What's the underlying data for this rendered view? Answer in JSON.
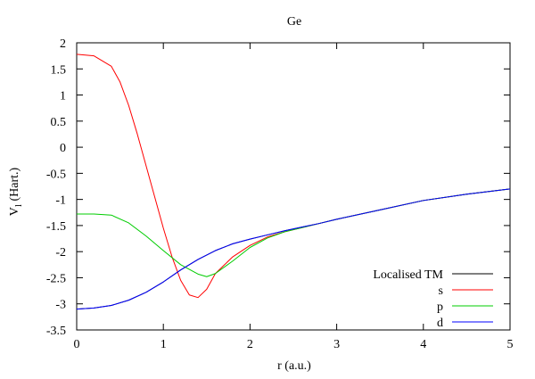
{
  "chart_data": {
    "type": "line",
    "title": "Ge",
    "xlabel": "r (a.u.)",
    "ylabel": {
      "main": "V",
      "subscript": "l",
      "suffix": " (Hart.)"
    },
    "xlim": [
      0,
      5
    ],
    "ylim": [
      -3.5,
      2
    ],
    "x_ticks": [
      0,
      1,
      2,
      3,
      4,
      5
    ],
    "y_ticks": [
      -3.5,
      -3,
      -2.5,
      -2,
      -1.5,
      -1,
      -0.5,
      0,
      0.5,
      1,
      1.5,
      2
    ],
    "grid": false,
    "legend_position": "bottom-right",
    "series": [
      {
        "name": "Localised TM",
        "color": "#000000",
        "x": [
          0.0,
          0.2,
          0.4,
          0.6,
          0.8,
          1.0,
          1.2,
          1.4,
          1.6,
          1.8,
          2.0,
          2.2,
          2.4,
          2.6,
          2.8,
          3.0,
          3.5,
          4.0,
          4.5,
          5.0
        ],
        "y": [
          -3.1,
          -3.08,
          -3.03,
          -2.93,
          -2.78,
          -2.58,
          -2.35,
          -2.15,
          -1.98,
          -1.85,
          -1.76,
          -1.68,
          -1.6,
          -1.53,
          -1.46,
          -1.38,
          -1.2,
          -1.02,
          -0.9,
          -0.8
        ]
      },
      {
        "name": "s",
        "color": "#ff0000",
        "x": [
          0.0,
          0.2,
          0.4,
          0.5,
          0.6,
          0.7,
          0.8,
          0.9,
          1.0,
          1.1,
          1.2,
          1.3,
          1.4,
          1.5,
          1.6,
          1.8,
          2.0,
          2.2,
          2.4,
          2.6,
          2.8,
          3.0,
          3.5,
          4.0,
          4.5,
          5.0
        ],
        "y": [
          1.78,
          1.75,
          1.55,
          1.25,
          0.8,
          0.25,
          -0.35,
          -0.95,
          -1.55,
          -2.1,
          -2.55,
          -2.83,
          -2.88,
          -2.72,
          -2.42,
          -2.1,
          -1.88,
          -1.72,
          -1.62,
          -1.54,
          -1.46,
          -1.38,
          -1.2,
          -1.02,
          -0.9,
          -0.8
        ]
      },
      {
        "name": "p",
        "color": "#00cc00",
        "x": [
          0.0,
          0.2,
          0.4,
          0.6,
          0.8,
          1.0,
          1.2,
          1.4,
          1.5,
          1.6,
          1.8,
          2.0,
          2.2,
          2.4,
          2.6,
          2.8,
          3.0,
          3.5,
          4.0,
          4.5,
          5.0
        ],
        "y": [
          -1.28,
          -1.28,
          -1.3,
          -1.45,
          -1.7,
          -1.98,
          -2.25,
          -2.43,
          -2.48,
          -2.42,
          -2.18,
          -1.92,
          -1.74,
          -1.62,
          -1.54,
          -1.46,
          -1.38,
          -1.2,
          -1.02,
          -0.9,
          -0.8
        ]
      },
      {
        "name": "d",
        "color": "#0000ff",
        "x": [
          0.0,
          0.2,
          0.4,
          0.6,
          0.8,
          1.0,
          1.2,
          1.4,
          1.6,
          1.8,
          2.0,
          2.2,
          2.4,
          2.6,
          2.8,
          3.0,
          3.5,
          4.0,
          4.5,
          5.0
        ],
        "y": [
          -3.1,
          -3.08,
          -3.03,
          -2.93,
          -2.78,
          -2.58,
          -2.35,
          -2.15,
          -1.98,
          -1.85,
          -1.76,
          -1.68,
          -1.6,
          -1.53,
          -1.46,
          -1.38,
          -1.2,
          -1.02,
          -0.9,
          -0.8
        ]
      }
    ]
  }
}
